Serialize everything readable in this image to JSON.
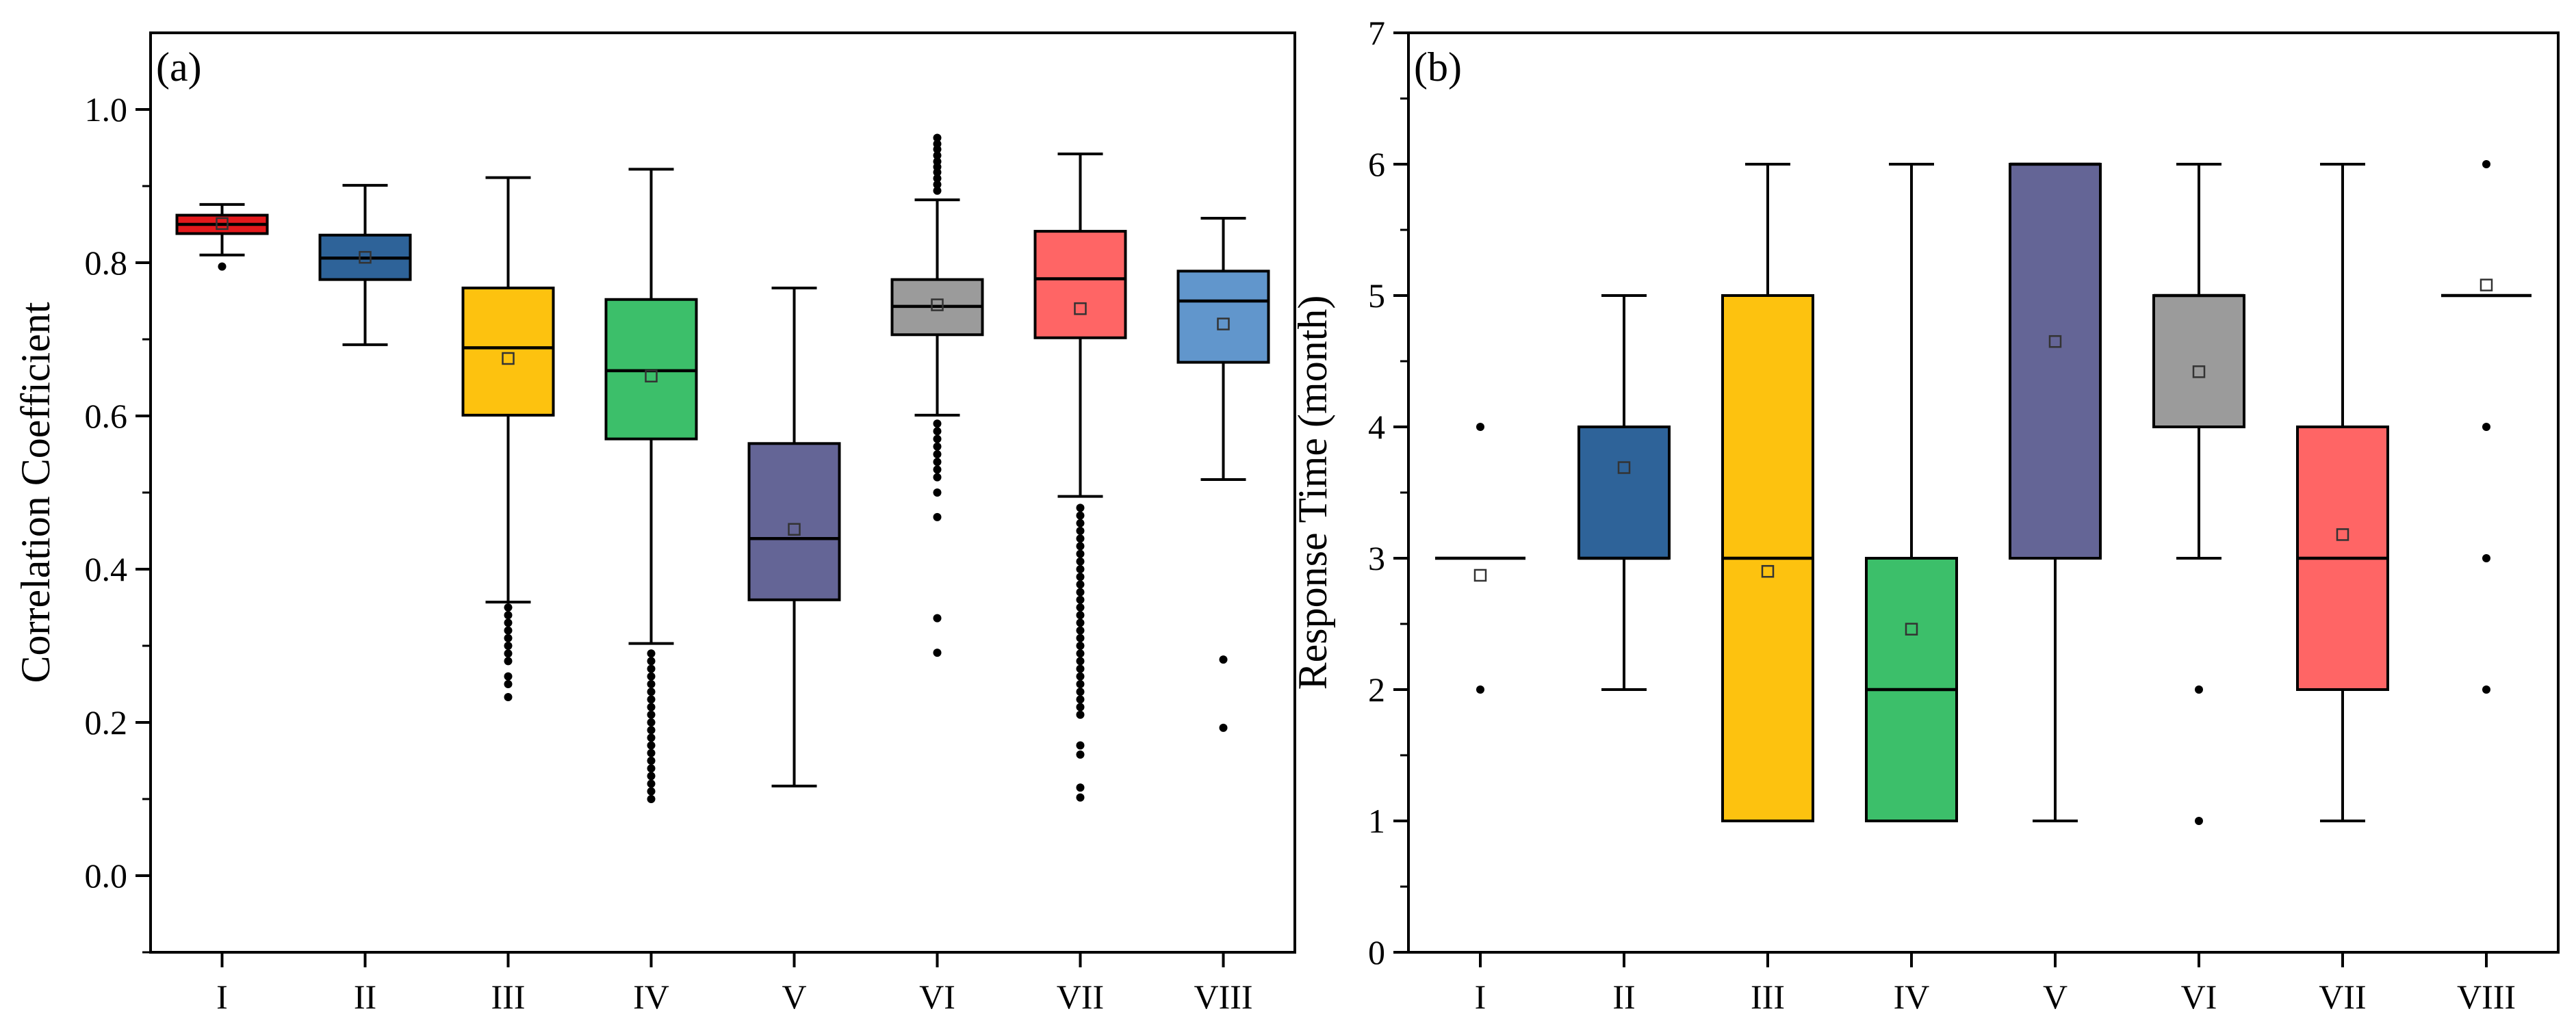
{
  "chart_data": [
    {
      "type": "box",
      "panel_label": "(a)",
      "ylabel": "Correlation Coefficient",
      "xlabel": "",
      "ylim": [
        -0.1,
        1.1
      ],
      "yticks": [
        0.0,
        0.2,
        0.4,
        0.6,
        0.8,
        1.0
      ],
      "ytick_labels": [
        "0.0",
        "0.2",
        "0.4",
        "0.6",
        "0.8",
        "1.0"
      ],
      "yminor": [
        -0.1,
        0.1,
        0.3,
        0.5,
        0.7,
        0.9
      ],
      "categories": [
        "I",
        "II",
        "III",
        "IV",
        "V",
        "VI",
        "VII",
        "VIII"
      ],
      "boxes": [
        {
          "name": "I",
          "color": "#e5191c",
          "whisker_low": 0.81,
          "q1": 0.838,
          "median": 0.85,
          "q3": 0.862,
          "whisker_high": 0.876,
          "mean": 0.851,
          "outliers": [
            0.795
          ]
        },
        {
          "name": "II",
          "color": "#2e6399",
          "whisker_low": 0.693,
          "q1": 0.778,
          "median": 0.806,
          "q3": 0.836,
          "whisker_high": 0.901,
          "mean": 0.807,
          "outliers": []
        },
        {
          "name": "III",
          "color": "#fdc20f",
          "whisker_low": 0.357,
          "q1": 0.601,
          "median": 0.689,
          "q3": 0.767,
          "whisker_high": 0.911,
          "mean": 0.675,
          "outliers": [
            0.35,
            0.34,
            0.33,
            0.32,
            0.31,
            0.3,
            0.29,
            0.28,
            0.26,
            0.25,
            0.233
          ]
        },
        {
          "name": "IV",
          "color": "#3cbf6a",
          "whisker_low": 0.303,
          "q1": 0.57,
          "median": 0.659,
          "q3": 0.752,
          "whisker_high": 0.922,
          "mean": 0.652,
          "outliers": [
            0.29,
            0.28,
            0.27,
            0.26,
            0.25,
            0.24,
            0.23,
            0.22,
            0.21,
            0.2,
            0.19,
            0.18,
            0.17,
            0.16,
            0.15,
            0.14,
            0.13,
            0.12,
            0.11,
            0.1
          ]
        },
        {
          "name": "V",
          "color": "#646596",
          "whisker_low": 0.117,
          "q1": 0.36,
          "median": 0.44,
          "q3": 0.564,
          "whisker_high": 0.767,
          "mean": 0.452,
          "outliers": []
        },
        {
          "name": "VI",
          "color": "#9b9b9b",
          "whisker_low": 0.601,
          "q1": 0.706,
          "median": 0.743,
          "q3": 0.778,
          "whisker_high": 0.882,
          "mean": 0.745,
          "outliers": [
            0.963,
            0.955,
            0.948,
            0.94,
            0.932,
            0.925,
            0.918,
            0.91,
            0.902,
            0.894,
            0.59,
            0.58,
            0.57,
            0.56,
            0.55,
            0.54,
            0.53,
            0.52,
            0.5,
            0.468,
            0.336,
            0.291
          ]
        },
        {
          "name": "VII",
          "color": "#ff6565",
          "whisker_low": 0.495,
          "q1": 0.702,
          "median": 0.779,
          "q3": 0.841,
          "whisker_high": 0.942,
          "mean": 0.74,
          "outliers": [
            0.48,
            0.47,
            0.46,
            0.45,
            0.44,
            0.43,
            0.42,
            0.41,
            0.4,
            0.39,
            0.38,
            0.37,
            0.36,
            0.35,
            0.34,
            0.33,
            0.32,
            0.31,
            0.3,
            0.29,
            0.28,
            0.27,
            0.26,
            0.25,
            0.24,
            0.23,
            0.22,
            0.21,
            0.17,
            0.158,
            0.115,
            0.102
          ]
        },
        {
          "name": "VIII",
          "color": "#6196cc",
          "whisker_low": 0.517,
          "q1": 0.67,
          "median": 0.75,
          "q3": 0.789,
          "whisker_high": 0.858,
          "mean": 0.72,
          "outliers": [
            0.282,
            0.193
          ]
        }
      ]
    },
    {
      "type": "box",
      "panel_label": "(b)",
      "ylabel": "Response Time (month)",
      "xlabel": "",
      "ylim": [
        0,
        7
      ],
      "yticks": [
        0,
        1,
        2,
        3,
        4,
        5,
        6,
        7
      ],
      "ytick_labels": [
        "0",
        "1",
        "2",
        "3",
        "4",
        "5",
        "6",
        "7"
      ],
      "yminor": [
        0.5,
        1.5,
        2.5,
        3.5,
        4.5,
        5.5,
        6.5
      ],
      "categories": [
        "I",
        "II",
        "III",
        "IV",
        "V",
        "VI",
        "VII",
        "VIII"
      ],
      "boxes": [
        {
          "name": "I",
          "color": "#ffffff",
          "whisker_low": 3,
          "q1": 3,
          "median": 3,
          "q3": 3,
          "whisker_high": 3,
          "mean": 2.87,
          "outliers": [
            4,
            2
          ]
        },
        {
          "name": "II",
          "color": "#2e6399",
          "whisker_low": 2,
          "q1": 3,
          "median": 3,
          "q3": 4,
          "whisker_high": 5,
          "mean": 3.69,
          "outliers": []
        },
        {
          "name": "III",
          "color": "#fdc20f",
          "whisker_low": 1,
          "q1": 1,
          "median": 3,
          "q3": 5,
          "whisker_high": 6,
          "mean": 2.9,
          "outliers": []
        },
        {
          "name": "IV",
          "color": "#3cbf6a",
          "whisker_low": 1,
          "q1": 1,
          "median": 2,
          "q3": 3,
          "whisker_high": 6,
          "mean": 2.46,
          "outliers": []
        },
        {
          "name": "V",
          "color": "#646596",
          "whisker_low": 1,
          "q1": 3,
          "median": 6,
          "q3": 6,
          "whisker_high": 6,
          "mean": 4.65,
          "outliers": []
        },
        {
          "name": "VI",
          "color": "#9b9b9b",
          "whisker_low": 3,
          "q1": 4,
          "median": 5,
          "q3": 5,
          "whisker_high": 6,
          "mean": 4.42,
          "outliers": [
            2,
            1
          ]
        },
        {
          "name": "VII",
          "color": "#ff6565",
          "whisker_low": 1,
          "q1": 2,
          "median": 3,
          "q3": 4,
          "whisker_high": 6,
          "mean": 3.18,
          "outliers": []
        },
        {
          "name": "VIII",
          "color": "#6196cc",
          "whisker_low": 5,
          "q1": 5,
          "median": 5,
          "q3": 5,
          "whisker_high": 5,
          "mean": 5.08,
          "outliers": [
            6,
            4,
            3,
            2
          ]
        }
      ]
    }
  ]
}
